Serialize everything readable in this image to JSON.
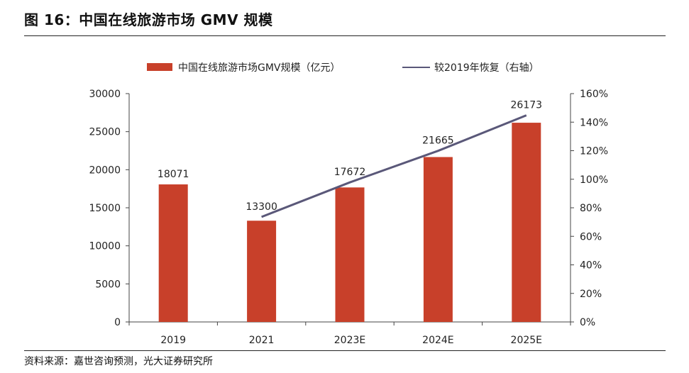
{
  "title": "图 16：中国在线旅游市场 GMV 规模",
  "source": "资料来源：嘉世咨询预测，光大证券研究所",
  "colors": {
    "bar": "#C8402A",
    "line": "#5A5879"
  },
  "chart_data": {
    "type": "bar",
    "categories": [
      "2019",
      "2021",
      "2023E",
      "2024E",
      "2025E"
    ],
    "series": [
      {
        "name": "中国在线旅游市场GMV规模（亿元）",
        "kind": "bar",
        "axis": "left",
        "values": [
          18071,
          13300,
          17672,
          21665,
          26173
        ],
        "labels": [
          "18071",
          "13300",
          "17672",
          "21665",
          "26173"
        ]
      },
      {
        "name": "较2019年恢复（右轴）",
        "kind": "line",
        "axis": "right",
        "values": [
          null,
          0.736,
          0.978,
          1.199,
          1.448
        ]
      }
    ],
    "ylim_left": [
      0,
      30000
    ],
    "yticks_left": [
      "0",
      "5000",
      "10000",
      "15000",
      "20000",
      "25000",
      "30000"
    ],
    "ylim_right": [
      0,
      1.6
    ],
    "yticks_right": [
      "0%",
      "20%",
      "40%",
      "60%",
      "80%",
      "100%",
      "120%",
      "140%",
      "160%"
    ],
    "grid": false,
    "legend": "top"
  }
}
